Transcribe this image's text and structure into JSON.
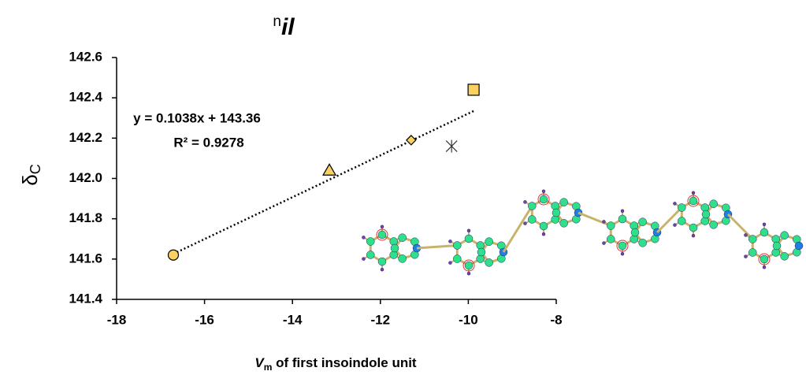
{
  "chart_data": {
    "type": "scatter",
    "title": {
      "sup": "n",
      "main": "il"
    },
    "x_label": {
      "symbol": "V",
      "sub": "m",
      "rest": " of first insoindole unit"
    },
    "y_label": {
      "symbol": "δ",
      "sub": "C"
    },
    "xlim": [
      -18,
      -8
    ],
    "xticks": [
      -18,
      -16,
      -14,
      -12,
      -10,
      -8
    ],
    "ylim": [
      141.4,
      142.6
    ],
    "yticks": [
      {
        "value": 141.4,
        "label": "141.4"
      },
      {
        "value": 141.6,
        "label": "141.6"
      },
      {
        "value": 141.8,
        "label": "141.8"
      },
      {
        "value": 142.0,
        "label": "142.0"
      },
      {
        "value": 142.2,
        "label": "142.2"
      },
      {
        "value": 142.4,
        "label": "142.4"
      },
      {
        "value": 142.6,
        "label": "142.6"
      }
    ],
    "series": [
      {
        "color": "#f9d161",
        "markers": [
          "circle",
          "triangle",
          "diamond",
          "asterisk",
          "square"
        ],
        "x": [
          -16.71,
          -13.16,
          -11.3,
          -10.38,
          -9.88
        ],
        "values": [
          141.62,
          142.04,
          142.19,
          142.16,
          142.44
        ]
      }
    ],
    "trendline": {
      "slope": 0.1038,
      "intercept": 143.36,
      "x": [
        -16.71,
        -9.88
      ]
    },
    "annotations": [
      "y = 0.1038x + 143.36",
      "R² = 0.9278"
    ]
  }
}
